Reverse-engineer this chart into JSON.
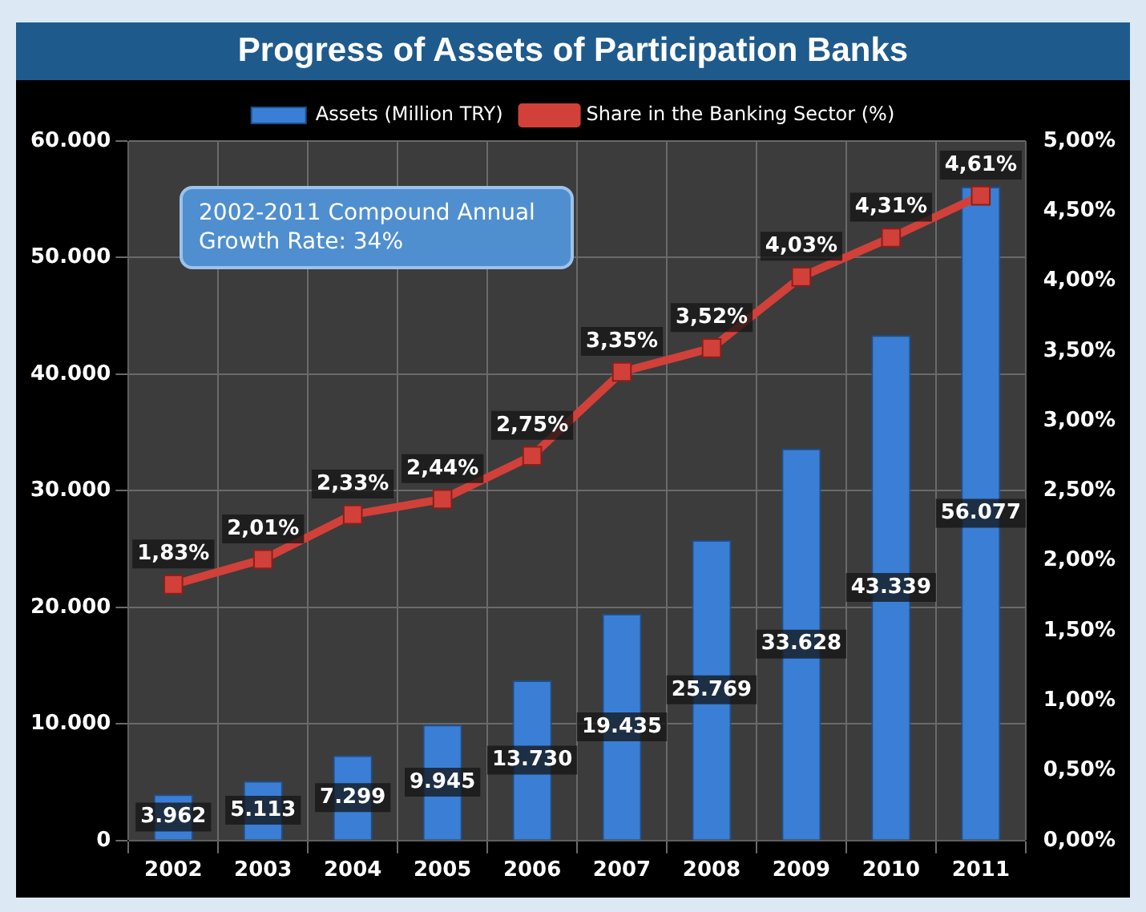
{
  "chart_data": {
    "type": "bar",
    "title": "Progress of Assets of Participation Banks",
    "categories": [
      "2002",
      "2003",
      "2004",
      "2005",
      "2006",
      "2007",
      "2008",
      "2009",
      "2010",
      "2011"
    ],
    "series": [
      {
        "name": "Assets (Million TRY)",
        "color": "#3a7fd5",
        "values": [
          3962,
          5113,
          7299,
          9945,
          13730,
          19435,
          25769,
          33628,
          43339,
          56077
        ],
        "value_labels": [
          "3.962",
          "5.113",
          "7.299",
          "9.945",
          "13.730",
          "19.435",
          "25.769",
          "33.628",
          "43.339",
          "56.077"
        ]
      },
      {
        "name": "Share in the Banking Sector (%)",
        "type": "line",
        "axis": "y2",
        "color": "#d2403a",
        "values": [
          1.83,
          2.01,
          2.33,
          2.44,
          2.75,
          3.35,
          3.52,
          4.03,
          4.31,
          4.61
        ],
        "value_labels": [
          "1,83%",
          "2,01%",
          "2,33%",
          "2,44%",
          "2,75%",
          "3,35%",
          "3,52%",
          "4,03%",
          "4,31%",
          "4,61%"
        ]
      }
    ],
    "ylim": [
      0,
      60000
    ],
    "yticks": [
      {
        "value": 0,
        "label": "0"
      },
      {
        "value": 10000,
        "label": "10.000"
      },
      {
        "value": 20000,
        "label": "20.000"
      },
      {
        "value": 30000,
        "label": "30.000"
      },
      {
        "value": 40000,
        "label": "40.000"
      },
      {
        "value": 50000,
        "label": "50.000"
      },
      {
        "value": 60000,
        "label": "60.000"
      }
    ],
    "y2lim": [
      0,
      5
    ],
    "y2ticks": [
      {
        "value": 0,
        "label": "0,00%"
      },
      {
        "value": 0.5,
        "label": "0,50%"
      },
      {
        "value": 1,
        "label": "1,00%"
      },
      {
        "value": 1.5,
        "label": "1,50%"
      },
      {
        "value": 2,
        "label": "2,00%"
      },
      {
        "value": 2.5,
        "label": "2,50%"
      },
      {
        "value": 3,
        "label": "3,00%"
      },
      {
        "value": 3.5,
        "label": "3,50%"
      },
      {
        "value": 4,
        "label": "4,00%"
      },
      {
        "value": 4.5,
        "label": "4,50%"
      },
      {
        "value": 5,
        "label": "5,00%"
      }
    ],
    "annotations": [
      "2002-2011 Compound Annual Growth Rate: 34%"
    ],
    "grid": true,
    "legend": "top",
    "marker": "square",
    "line_style": "solid"
  }
}
